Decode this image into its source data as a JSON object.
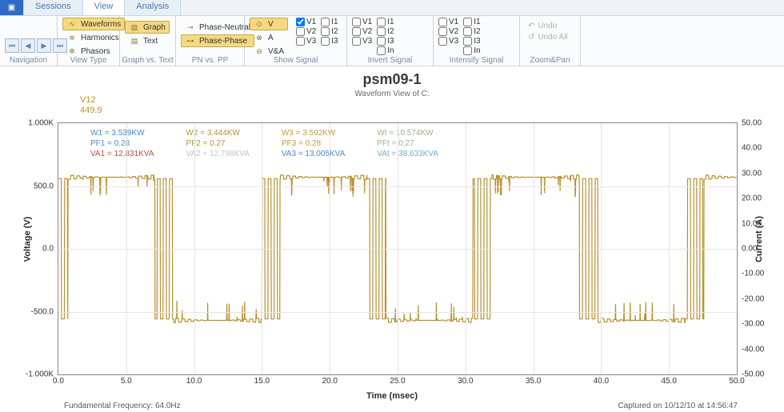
{
  "tabs": {
    "icon": "▣",
    "items": [
      "Sessions",
      "View",
      "Analysis"
    ],
    "active": 1
  },
  "ribbon": {
    "navigation": {
      "label": "Navigation"
    },
    "viewtype": {
      "label": "View Type",
      "waveforms": "Waveforms",
      "harmonics": "Harmonics",
      "phasors": "Phasors"
    },
    "gvt": {
      "label": "Graph vs. Text",
      "graph": "Graph",
      "text": "Text"
    },
    "pnpp": {
      "label": "PN vs. PP",
      "pn": "Phase-Neutral",
      "pp": "Phase-Phase"
    },
    "showsig": {
      "label": "Show Signal",
      "v": "V",
      "a": "A",
      "va": "V&A",
      "col1": [
        "V1",
        "V2",
        "V3"
      ],
      "col2": [
        "I1",
        "I2",
        "I3"
      ],
      "col1_checked": [
        true,
        false,
        false
      ]
    },
    "invert": {
      "label": "Invert Signal",
      "col1": [
        "V1",
        "V2",
        "V3"
      ],
      "col2": [
        "I1",
        "I2",
        "I3",
        "In"
      ]
    },
    "intensify": {
      "label": "Intensify Signal",
      "col1": [
        "V1",
        "V2",
        "V3"
      ],
      "col2": [
        "I1",
        "I2",
        "I3",
        "In"
      ]
    },
    "zoom": {
      "label": "Zoom&Pan",
      "undo": "Undo",
      "undoall": "Undo All"
    }
  },
  "chart": {
    "title": "psm09-1",
    "subtitle": "Waveform View of C:",
    "cursor": {
      "label": "V12",
      "value": "449.9",
      "color": "#c5912d"
    },
    "xlabel": "Time (msec)",
    "ylabel": "Voltage (V)",
    "ylabel2": "Current (A)",
    "xlim": [
      0,
      50
    ],
    "xtick_step": 5,
    "ylim": [
      -1000,
      1000
    ],
    "ytick_step": 500,
    "ytick_labels": [
      "-1.000K",
      "-500.0",
      "0.0",
      "500.0",
      "1.000K"
    ],
    "y2lim": [
      -50,
      50
    ],
    "y2tick_step": 10,
    "y2tick_labels": [
      "-50.00",
      "-40.00",
      "-30.00",
      "-20.00",
      "-10.00",
      "0.00",
      "10.00",
      "20.00",
      "30.00",
      "40.00",
      "50.00"
    ],
    "grid_color": "#e4e4e4",
    "waveform_color": "#b8902f",
    "legend": {
      "rows": [
        [
          {
            "t": "W1 = 3.539KW",
            "c": "#4a88c8"
          },
          {
            "t": "W2 = 3.444KW",
            "c": "#b8902f"
          },
          {
            "t": "W3 = 3.592KW",
            "c": "#c79a3a"
          },
          {
            "t": "Wt = 10.574KW",
            "c": "#9ab58a"
          }
        ],
        [
          {
            "t": "PF1 = 0.28",
            "c": "#4a88c8"
          },
          {
            "t": "PF2 = 0.27",
            "c": "#b8902f"
          },
          {
            "t": "PF3 = 0.28",
            "c": "#c79a3a"
          },
          {
            "t": "PFt = 0.27",
            "c": "#9ab58a"
          }
        ],
        [
          {
            "t": "VA1 = 12.831KVA",
            "c": "#b8533a"
          },
          {
            "t": "VA2 = 12.798KVA",
            "c": "#c4c4c4"
          },
          {
            "t": "VA3 = 13.005KVA",
            "c": "#4a88c8"
          },
          {
            "t": "VAt = 38.633KVA",
            "c": "#7aa8d4"
          }
        ]
      ]
    },
    "footer_left": "Fundamental Frequency: 64.0Hz",
    "footer_right": "Captured on 10/12/10 at 14:56:47",
    "waveform": {
      "carrier_hz": 2200,
      "fundamental_hz": 64,
      "duration_ms": 50,
      "envelope_high": 570,
      "envelope_low": -570,
      "noise": 25,
      "samples": 2400
    }
  }
}
